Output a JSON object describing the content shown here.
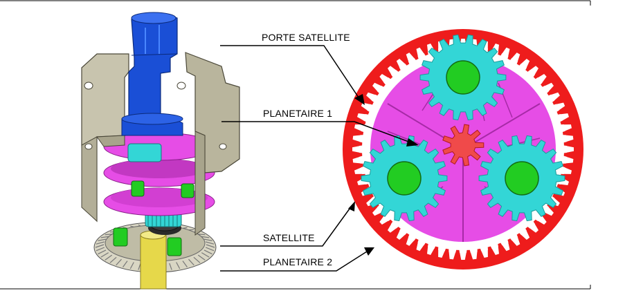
{
  "labels": {
    "porte_satellite": "PORTE SATELLITE",
    "planetaire_1": "PLANETAIRE 1",
    "satellite": "SATELLITE",
    "planetaire_2": "PLANETAIRE 2"
  },
  "colors": {
    "ring_gear": "#ee1c1c",
    "planet_gear": "#33d6d6",
    "planet_pin": "#22cc22",
    "sun_gear": "#f04a4a",
    "carrier": "#e64de6",
    "housing": "#c8c4ae",
    "shaft_blue": "#1a4fd6",
    "shaft_yellow": "#e6d84a",
    "frame_line": "#000000"
  },
  "gear_counts": {
    "ring_teeth": 60,
    "planet_teeth": 18,
    "sun_teeth": 9,
    "planet_count": 3
  }
}
